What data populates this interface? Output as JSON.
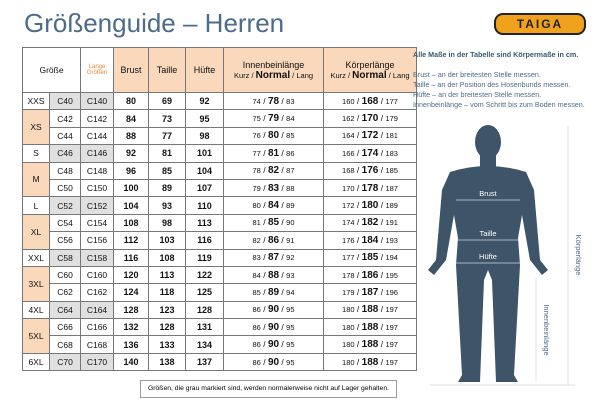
{
  "header": {
    "title": "Größenguide – Herren",
    "logo": "TAIGA"
  },
  "table": {
    "columns": {
      "size": "Größe",
      "long": "Lange Größen",
      "chest": "Brust",
      "waist": "Taille",
      "hip": "Hüfte",
      "inseam": "Innenbeinlänge",
      "inseam_sub": [
        "Kurz",
        "Normal",
        "Lang"
      ],
      "height": "Körperlänge",
      "height_sub": [
        "Kurz",
        "Normal",
        "Lang"
      ]
    },
    "groups": [
      {
        "size": "XXS",
        "rows": [
          [
            "C40",
            "C140",
            80,
            69,
            92,
            [
              74,
              78,
              83
            ],
            [
              160,
              168,
              177
            ]
          ]
        ]
      },
      {
        "size": "XS",
        "rows": [
          [
            "C42",
            "C142",
            84,
            73,
            95,
            [
              75,
              79,
              84
            ],
            [
              162,
              170,
              179
            ]
          ],
          [
            "C44",
            "C144",
            88,
            77,
            98,
            [
              76,
              80,
              85
            ],
            [
              164,
              172,
              181
            ]
          ]
        ]
      },
      {
        "size": "S",
        "rows": [
          [
            "C46",
            "C146",
            92,
            81,
            101,
            [
              77,
              81,
              86
            ],
            [
              166,
              174,
              183
            ]
          ]
        ]
      },
      {
        "size": "M",
        "rows": [
          [
            "C48",
            "C148",
            96,
            85,
            104,
            [
              78,
              82,
              87
            ],
            [
              168,
              176,
              185
            ]
          ],
          [
            "C50",
            "C150",
            100,
            89,
            107,
            [
              79,
              83,
              88
            ],
            [
              170,
              178,
              187
            ]
          ]
        ]
      },
      {
        "size": "L",
        "rows": [
          [
            "C52",
            "C152",
            104,
            93,
            110,
            [
              80,
              84,
              89
            ],
            [
              172,
              180,
              189
            ]
          ]
        ]
      },
      {
        "size": "XL",
        "rows": [
          [
            "C54",
            "C154",
            108,
            98,
            113,
            [
              81,
              85,
              90
            ],
            [
              174,
              182,
              191
            ]
          ],
          [
            "C56",
            "C156",
            112,
            103,
            116,
            [
              82,
              86,
              91
            ],
            [
              176,
              184,
              193
            ]
          ]
        ]
      },
      {
        "size": "XXL",
        "rows": [
          [
            "C58",
            "C158",
            116,
            108,
            119,
            [
              83,
              87,
              92
            ],
            [
              177,
              185,
              194
            ]
          ]
        ]
      },
      {
        "size": "3XL",
        "rows": [
          [
            "C60",
            "C160",
            120,
            113,
            122,
            [
              84,
              88,
              93
            ],
            [
              178,
              186,
              195
            ]
          ],
          [
            "C62",
            "C162",
            124,
            118,
            125,
            [
              85,
              89,
              94
            ],
            [
              179,
              187,
              196
            ]
          ]
        ]
      },
      {
        "size": "4XL",
        "rows": [
          [
            "C64",
            "C164",
            128,
            123,
            128,
            [
              86,
              90,
              95
            ],
            [
              180,
              188,
              197
            ]
          ]
        ]
      },
      {
        "size": "5XL",
        "rows": [
          [
            "C66",
            "C166",
            132,
            128,
            131,
            [
              86,
              90,
              95
            ],
            [
              180,
              188,
              197
            ]
          ],
          [
            "C68",
            "C168",
            136,
            133,
            134,
            [
              86,
              90,
              95
            ],
            [
              180,
              188,
              197
            ]
          ]
        ]
      },
      {
        "size": "6XL",
        "rows": [
          [
            "C70",
            "C170",
            140,
            138,
            137,
            [
              86,
              90,
              95
            ],
            [
              180,
              188,
              197
            ]
          ]
        ]
      }
    ],
    "footnote": "Größen, die grau markiert sind, werden normalerweise nicht auf Lager gehalten."
  },
  "notes": {
    "heading": "Alle Maße in der Tabelle sind Körpermaße in cm.",
    "lines": [
      "Brust – an der breitesten Stelle messen.",
      "Taille – an der Position des Hosenbunds messen.",
      "Hüfte – an der breitesten Stelle messen.",
      "Innenbeinlänge – vom Schritt bis zum Boden messen."
    ]
  },
  "figure": {
    "chest": "Brust",
    "waist": "Taille",
    "hip": "Hüfte",
    "height": "Körperlänge",
    "inseam": "Innenbeinlänge"
  }
}
